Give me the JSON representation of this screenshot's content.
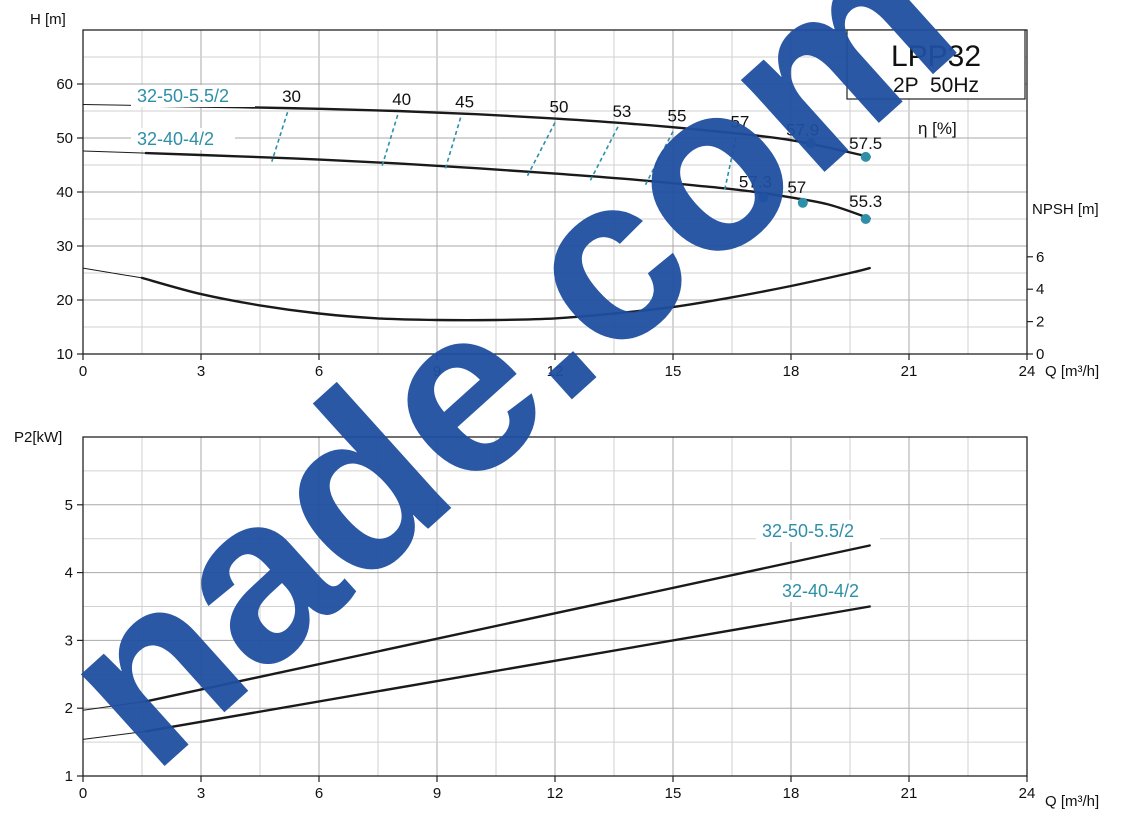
{
  "colors": {
    "curve": "#1a1a1a",
    "accent": "#2e8fa8",
    "grid_major": "#a8a8a8",
    "grid_minor": "#d2d2d2",
    "watermark": "#1f4fa0"
  },
  "title_box": {
    "model": "LPP32",
    "spec": "2P  50Hz"
  },
  "watermark": {
    "text": "nade.com"
  },
  "chart_data": [
    {
      "type": "line",
      "id": "head",
      "xlabel": "Q [m³/h]",
      "ylabel": "H [m]",
      "xlim": [
        0,
        24
      ],
      "ylim": [
        10,
        70
      ],
      "x_ticks": [
        0,
        3,
        6,
        9,
        12,
        15,
        18,
        21,
        24
      ],
      "y_ticks": [
        10,
        20,
        30,
        40,
        50,
        60
      ],
      "grid": true,
      "series": [
        {
          "name": "32-50-5.5/2",
          "x": [
            0,
            1.6,
            4,
            6,
            8,
            10,
            12,
            14,
            16,
            18,
            20
          ],
          "y": [
            56.2,
            56.0,
            55.7,
            55.4,
            55.0,
            54.4,
            53.6,
            52.6,
            51.3,
            49.6,
            46.5
          ]
        },
        {
          "name": "32-40-4/2",
          "x": [
            0,
            1.6,
            4,
            6,
            8,
            10,
            12,
            14,
            16,
            17,
            18,
            19,
            20
          ],
          "y": [
            47.6,
            47.2,
            46.6,
            46.0,
            45.3,
            44.4,
            43.4,
            42.3,
            40.9,
            40.1,
            39.0,
            37.6,
            35.1
          ]
        }
      ],
      "efficiency_label": "η [%]",
      "efficiency_contours": [
        {
          "label": "30",
          "x_top": 5.2,
          "x_bottom": 4.8
        },
        {
          "label": "40",
          "x_top": 8.0,
          "x_bottom": 7.6
        },
        {
          "label": "45",
          "x_top": 9.6,
          "x_bottom": 9.2
        },
        {
          "label": "50",
          "x_top": 12.0,
          "x_bottom": 11.3
        },
        {
          "label": "53",
          "x_top": 13.6,
          "x_bottom": 12.9
        },
        {
          "label": "55",
          "x_top": 15.0,
          "x_bottom": 14.3
        },
        {
          "label": "57",
          "x_top": 16.6,
          "x_bottom": 16.3
        }
      ],
      "efficiency_points": [
        {
          "label": "57.9",
          "x": 18.5,
          "y": 49.0
        },
        {
          "label": "57.5",
          "x": 19.9,
          "y": 46.5
        },
        {
          "label": "57.3",
          "x": 17.3,
          "y": 39.0
        },
        {
          "label": "57",
          "x": 18.3,
          "y": 38.0
        },
        {
          "label": "55.3",
          "x": 19.9,
          "y": 35.0
        }
      ]
    },
    {
      "type": "line",
      "id": "npsh",
      "ylabel": "NPSH [m]",
      "ylim": [
        0,
        6
      ],
      "y_ticks": [
        0,
        2,
        4,
        6
      ],
      "series": [
        {
          "x": [
            0,
            1.5,
            3,
            4.5,
            6,
            7.5,
            9,
            10.5,
            12,
            13.5,
            15,
            16.5,
            18,
            19.5,
            20
          ],
          "y": [
            5.3,
            4.7,
            3.7,
            3.0,
            2.5,
            2.2,
            2.1,
            2.1,
            2.2,
            2.5,
            2.9,
            3.5,
            4.2,
            5.0,
            5.3
          ]
        }
      ]
    },
    {
      "type": "line",
      "id": "power",
      "xlabel": "Q [m³/h]",
      "ylabel": "P2[kW]",
      "xlim": [
        0,
        24
      ],
      "ylim": [
        1,
        6
      ],
      "x_ticks": [
        0,
        3,
        6,
        9,
        12,
        15,
        18,
        21,
        24
      ],
      "y_ticks": [
        1,
        2,
        3,
        4,
        5
      ],
      "grid": true,
      "series": [
        {
          "name": "32-50-5.5/2",
          "x": [
            0,
            1.6,
            20
          ],
          "y": [
            1.97,
            2.1,
            4.4
          ]
        },
        {
          "name": "32-40-4/2",
          "x": [
            0,
            1.6,
            20
          ],
          "y": [
            1.54,
            1.66,
            3.5
          ]
        }
      ]
    }
  ]
}
